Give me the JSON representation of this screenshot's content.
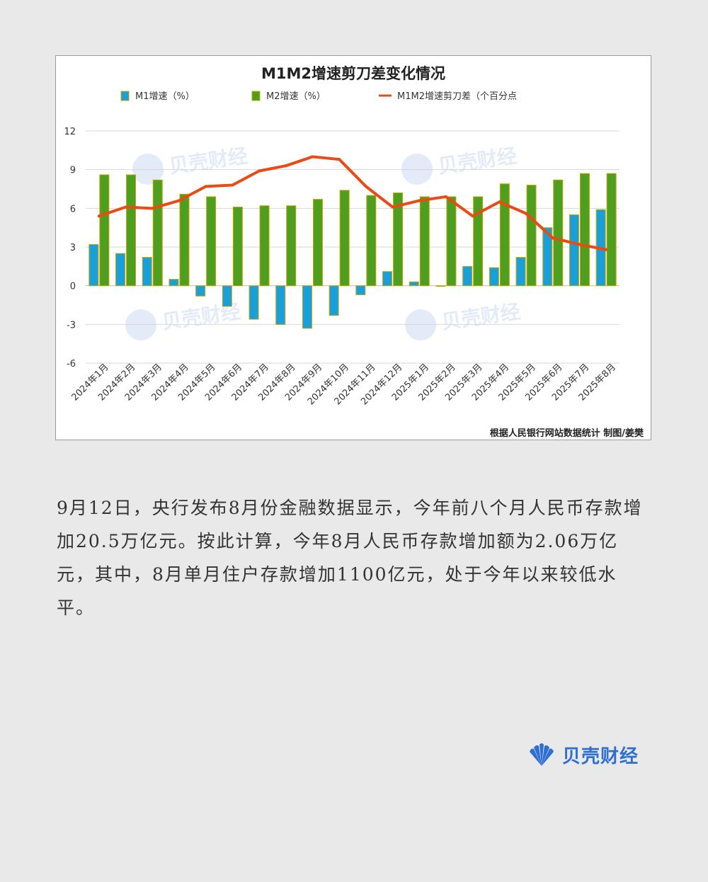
{
  "chart_data": {
    "type": "bar+line",
    "title": "M1M2增速剪刀差变化情况",
    "legend": [
      {
        "label": "M1增速（%）",
        "kind": "bar",
        "color": "#1aa0d8"
      },
      {
        "label": "M2增速（%）",
        "kind": "bar",
        "color": "#4e9f1f"
      },
      {
        "label": "M1M2增速剪刀差（个百分点",
        "kind": "line",
        "color": "#ec4a14"
      }
    ],
    "categories": [
      "2024年1月",
      "2024年2月",
      "2024年3月",
      "2024年4月",
      "2024年5月",
      "2024年6月",
      "2024年7月",
      "2024年8月",
      "2024年9月",
      "2024年10月",
      "2024年11月",
      "2024年12月",
      "2025年1月",
      "2025年2月",
      "2025年3月",
      "2025年4月",
      "2025年5月",
      "2025年6月",
      "2025年7月",
      "2025年8月"
    ],
    "series": [
      {
        "name": "M1增速（%）",
        "values": [
          3.2,
          2.5,
          2.2,
          0.5,
          -0.8,
          -1.6,
          -2.6,
          -3.0,
          -3.3,
          -2.3,
          -0.7,
          1.1,
          0.3,
          0.0,
          1.5,
          1.4,
          2.2,
          4.5,
          5.5,
          5.9
        ]
      },
      {
        "name": "M2增速（%）",
        "values": [
          8.6,
          8.6,
          8.2,
          7.1,
          6.9,
          6.1,
          6.2,
          6.2,
          6.7,
          7.4,
          7.0,
          7.2,
          6.9,
          6.9,
          6.9,
          7.9,
          7.8,
          8.2,
          8.7,
          8.7
        ]
      },
      {
        "name": "M1M2增速剪刀差",
        "values": [
          5.4,
          6.1,
          6.0,
          6.6,
          7.7,
          7.8,
          8.9,
          9.3,
          10.0,
          9.8,
          7.7,
          6.1,
          6.6,
          6.9,
          5.4,
          6.5,
          5.6,
          3.7,
          3.2,
          2.8
        ]
      }
    ],
    "yticks": [
      "12",
      "9",
      "6",
      "3",
      "0",
      "-3",
      "-6"
    ],
    "ylim": [
      -6,
      12
    ],
    "source": "根据人民银行网站数据统计 制图/姜樊",
    "watermark": "贝壳财经"
  },
  "article": {
    "paragraph": "9月12日，央行发布8月份金融数据显示，今年前八个月人民币存款增加20.5万亿元。按此计算，今年8月人民币存款增加额为2.06万亿元，其中，8月单月住户存款增加1100亿元，处于今年以来较低水平。"
  },
  "brand": {
    "name": "贝壳财经",
    "color": "#2e6fd1"
  }
}
